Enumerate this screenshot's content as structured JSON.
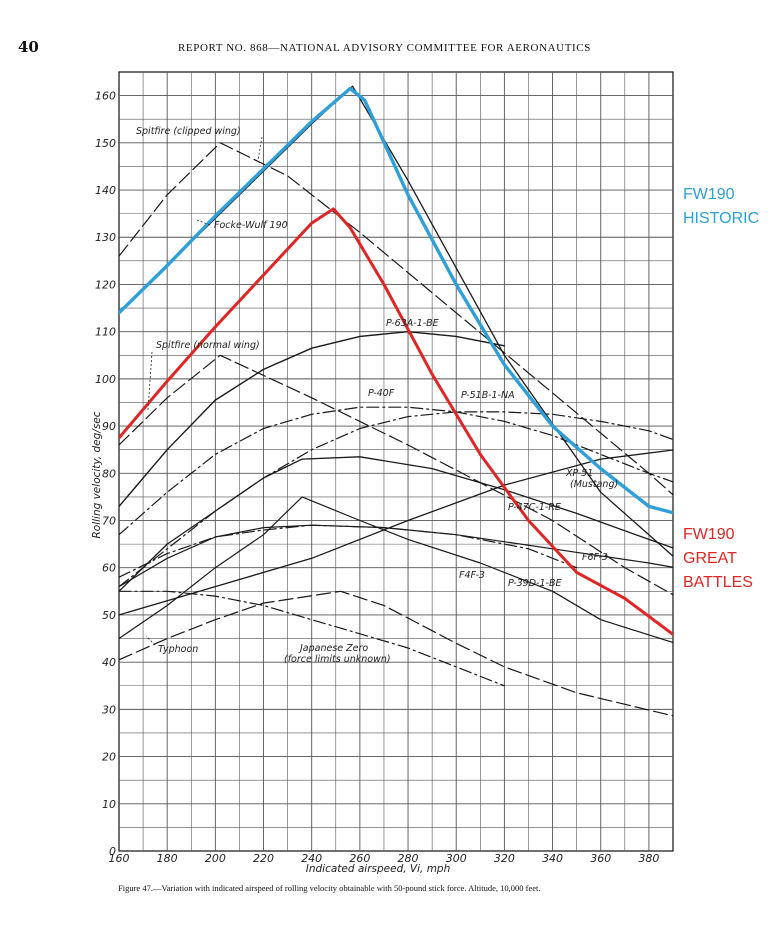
{
  "page": {
    "page_number": "40",
    "header": "REPORT NO. 868—NATIONAL ADVISORY COMMITTEE FOR AERONAUTICS",
    "caption": "Figure 47.—Variation with indicated airspeed of rolling velocity obtainable with 50-pound stick force.   Altitude, 10,000 feet."
  },
  "chart_data": {
    "type": "line",
    "xlabel": "Indicated airspeed, Vi, mph",
    "ylabel": "Rolling velocity, deg/sec",
    "xlim": [
      160,
      390
    ],
    "ylim": [
      0,
      165
    ],
    "x_ticks": [
      160,
      180,
      200,
      220,
      240,
      260,
      280,
      300,
      320,
      340,
      360,
      380
    ],
    "y_ticks": [
      0,
      10,
      20,
      30,
      40,
      50,
      60,
      70,
      80,
      90,
      100,
      110,
      120,
      130,
      140,
      150,
      160
    ],
    "grid": true,
    "colors": {
      "ink": "#1a1a1a",
      "grid": "#555555",
      "historic": "#2f9fd8",
      "great_battles": "#e02525"
    },
    "series": [
      {
        "name": "FW190 HISTORIC",
        "color": "#2f9fd8",
        "dash": "solid",
        "width": 3.4,
        "points": [
          [
            160,
            114
          ],
          [
            180,
            124
          ],
          [
            200,
            134.5
          ],
          [
            220,
            144.5
          ],
          [
            240,
            154.5
          ],
          [
            256,
            161.5
          ],
          [
            262,
            159
          ],
          [
            280,
            139
          ],
          [
            300,
            120
          ],
          [
            320,
            103
          ],
          [
            340,
            90
          ],
          [
            360,
            81
          ],
          [
            380,
            73
          ],
          [
            391,
            71.5
          ]
        ]
      },
      {
        "name": "FW190 GREAT BATTLES",
        "color": "#e02525",
        "dash": "solid",
        "width": 3.0,
        "points": [
          [
            160,
            87.5
          ],
          [
            180,
            99.5
          ],
          [
            200,
            111
          ],
          [
            220,
            122
          ],
          [
            240,
            133
          ],
          [
            249,
            136
          ],
          [
            256,
            132
          ],
          [
            270,
            120
          ],
          [
            290,
            101
          ],
          [
            310,
            84
          ],
          [
            330,
            70
          ],
          [
            350,
            59
          ],
          [
            370,
            53.5
          ],
          [
            391,
            45.5
          ]
        ]
      },
      {
        "name": "Focke-Wulf 190",
        "dash": "solid",
        "width": 1.3,
        "points": [
          [
            160,
            114
          ],
          [
            200,
            134
          ],
          [
            240,
            154
          ],
          [
            257,
            162
          ],
          [
            280,
            142
          ],
          [
            320,
            105
          ],
          [
            360,
            76
          ],
          [
            391,
            62
          ]
        ]
      },
      {
        "name": "Spitfire (clipped wing)",
        "dash": "longdash",
        "width": 1.2,
        "points": [
          [
            160,
            126
          ],
          [
            180,
            139
          ],
          [
            202,
            150
          ],
          [
            230,
            143
          ],
          [
            260,
            131
          ],
          [
            300,
            114
          ],
          [
            340,
            97
          ],
          [
            380,
            80
          ],
          [
            391,
            75
          ]
        ]
      },
      {
        "name": "Spitfire (normal wing)",
        "dash": "longdash",
        "width": 1.2,
        "points": [
          [
            160,
            86
          ],
          [
            180,
            96
          ],
          [
            202,
            105
          ],
          [
            240,
            96
          ],
          [
            280,
            86
          ],
          [
            310,
            78
          ],
          [
            340,
            70
          ],
          [
            370,
            60
          ],
          [
            391,
            54
          ]
        ]
      },
      {
        "name": "P-63A-1-BE",
        "dash": "solid",
        "width": 1.4,
        "points": [
          [
            160,
            73
          ],
          [
            180,
            85
          ],
          [
            200,
            95.5
          ],
          [
            220,
            102
          ],
          [
            240,
            106.5
          ],
          [
            260,
            109
          ],
          [
            280,
            110
          ],
          [
            300,
            109
          ],
          [
            320,
            107
          ]
        ]
      },
      {
        "name": "P-40F",
        "dash": "dashdot",
        "width": 1.2,
        "points": [
          [
            160,
            67
          ],
          [
            180,
            76
          ],
          [
            200,
            84
          ],
          [
            220,
            89.5
          ],
          [
            240,
            92.5
          ],
          [
            260,
            94
          ],
          [
            280,
            94
          ],
          [
            300,
            93
          ],
          [
            320,
            91
          ],
          [
            340,
            88
          ],
          [
            360,
            84
          ],
          [
            380,
            80
          ],
          [
            391,
            78
          ]
        ]
      },
      {
        "name": "P-51B-1-NA",
        "dash": "dashdot",
        "width": 1.2,
        "points": [
          [
            160,
            56
          ],
          [
            180,
            64
          ],
          [
            200,
            72
          ],
          [
            220,
            79
          ],
          [
            240,
            85
          ],
          [
            260,
            89.5
          ],
          [
            280,
            92
          ],
          [
            300,
            93
          ],
          [
            320,
            93
          ],
          [
            340,
            92.5
          ],
          [
            360,
            91
          ],
          [
            380,
            89
          ],
          [
            391,
            87
          ]
        ]
      },
      {
        "name": "XP-51 (Mustang)",
        "dash": "solid",
        "width": 1.3,
        "points": [
          [
            160,
            50
          ],
          [
            200,
            56
          ],
          [
            240,
            62
          ],
          [
            280,
            70
          ],
          [
            320,
            77.5
          ],
          [
            360,
            83
          ],
          [
            391,
            85
          ]
        ]
      },
      {
        "name": "P-47C-1-RE",
        "dash": "solid",
        "width": 1.3,
        "points": [
          [
            160,
            55
          ],
          [
            180,
            65
          ],
          [
            200,
            72
          ],
          [
            220,
            79
          ],
          [
            236,
            83
          ],
          [
            260,
            83.5
          ],
          [
            290,
            81
          ],
          [
            320,
            76.5
          ],
          [
            350,
            71.5
          ],
          [
            380,
            66
          ],
          [
            391,
            64
          ]
        ]
      },
      {
        "name": "F6F-3",
        "dash": "solid",
        "width": 1.2,
        "points": [
          [
            160,
            56
          ],
          [
            180,
            62
          ],
          [
            200,
            66.5
          ],
          [
            220,
            68.5
          ],
          [
            240,
            69
          ],
          [
            270,
            68.5
          ],
          [
            300,
            67
          ],
          [
            340,
            64
          ],
          [
            380,
            61
          ],
          [
            391,
            60
          ]
        ]
      },
      {
        "name": "F4F-3",
        "dash": "dashdot",
        "width": 1.2,
        "points": [
          [
            160,
            58
          ],
          [
            180,
            63
          ],
          [
            200,
            66.5
          ],
          [
            220,
            68
          ],
          [
            240,
            69
          ],
          [
            270,
            68.5
          ],
          [
            300,
            67
          ],
          [
            330,
            64
          ],
          [
            350,
            60
          ]
        ]
      },
      {
        "name": "P-39D-1-BE",
        "dash": "solid",
        "width": 1.2,
        "points": [
          [
            160,
            45
          ],
          [
            180,
            52
          ],
          [
            200,
            60
          ],
          [
            220,
            67
          ],
          [
            236,
            75
          ],
          [
            260,
            70
          ],
          [
            280,
            66
          ],
          [
            310,
            61
          ],
          [
            340,
            55
          ],
          [
            360,
            49
          ],
          [
            391,
            44
          ]
        ]
      },
      {
        "name": "Typhoon",
        "dash": "longdash",
        "width": 1.2,
        "points": [
          [
            160,
            40.5
          ],
          [
            180,
            45
          ],
          [
            200,
            49
          ],
          [
            220,
            52.5
          ],
          [
            252,
            55
          ],
          [
            270,
            52
          ],
          [
            300,
            44
          ],
          [
            320,
            39
          ],
          [
            350,
            33.5
          ],
          [
            391,
            28.5
          ]
        ]
      },
      {
        "name": "Japanese Zero (force limits unknown)",
        "dash": "dashdot",
        "width": 1.2,
        "points": [
          [
            160,
            55
          ],
          [
            180,
            55
          ],
          [
            200,
            54
          ],
          [
            220,
            52
          ],
          [
            240,
            49
          ],
          [
            260,
            46
          ],
          [
            280,
            43
          ],
          [
            300,
            39
          ],
          [
            320,
            35
          ]
        ]
      }
    ],
    "annotations": {
      "spitfire_clipped": "Spitfire (clipped wing)",
      "focke_wulf": "Focke-Wulf 190",
      "spitfire_normal": "Spitfire (normal wing)",
      "p63": "P-63A-1-BE",
      "p40": "P-40F",
      "p51b": "P-51B-1-NA",
      "xp51_line1": "XP-51",
      "xp51_line2": "(Mustang)",
      "p47": "P-47C-1-RE",
      "f6f": "F6F-3",
      "f4f": "F4F-3",
      "p39": "P-39D-1-BE",
      "typhoon": "Typhoon",
      "zero_line1": "Japanese Zero",
      "zero_line2": "(force limits unknown)"
    },
    "overlay_labels": {
      "historic_line1": "FW190",
      "historic_line2": "HISTORIC",
      "great_line1": "FW190",
      "great_line2": "GREAT",
      "great_line3": "BATTLES"
    }
  }
}
